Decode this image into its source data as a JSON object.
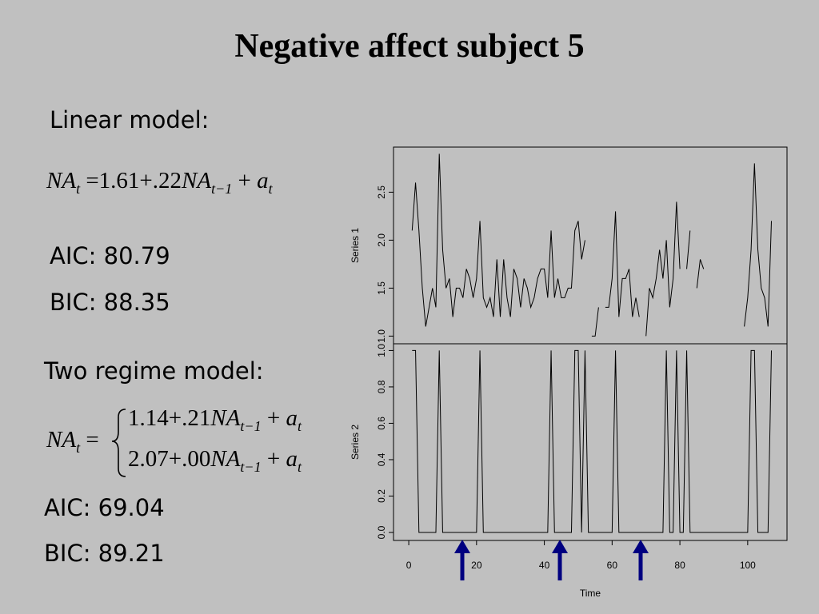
{
  "title": "Negative affect subject 5",
  "linear_model": {
    "heading": "Linear model:",
    "equation": [
      {
        "text": "NA",
        "sub": "t"
      },
      {
        "text": " =1.61+.22"
      },
      {
        "text": "NA",
        "sub": "t−1"
      },
      {
        "text": " + "
      },
      {
        "text": "a",
        "sub": "t"
      }
    ],
    "aic": "AIC: 80.79",
    "bic": "BIC: 88.35"
  },
  "two_regime_model": {
    "heading": "Two regime model:",
    "lhs": [
      {
        "text": "NA",
        "sub": "t"
      },
      {
        "text": " ="
      }
    ],
    "lines": [
      [
        {
          "text": "1.14+.21"
        },
        {
          "text": "NA",
          "sub": "t−1"
        },
        {
          "text": " + "
        },
        {
          "text": "a",
          "sub": "t"
        }
      ],
      [
        {
          "text": "2.07+.00"
        },
        {
          "text": "NA",
          "sub": "t−1"
        },
        {
          "text": " + "
        },
        {
          "text": "a",
          "sub": "t"
        }
      ]
    ],
    "aic": "AIC: 69.04",
    "bic": "BIC: 89.21"
  },
  "chart_data": [
    {
      "type": "line",
      "ylabel": "Series 1",
      "color": "#000000",
      "x": [
        1,
        2,
        3,
        4,
        5,
        6,
        7,
        8,
        9,
        10,
        11,
        12,
        13,
        14,
        15,
        16,
        17,
        18,
        19,
        20,
        21,
        22,
        23,
        24,
        25,
        26,
        27,
        28,
        29,
        30,
        31,
        32,
        33,
        34,
        35,
        36,
        37,
        38,
        39,
        40,
        41,
        42,
        43,
        44,
        45,
        46,
        47,
        48,
        49,
        50,
        51,
        52,
        53,
        54,
        55,
        56,
        57,
        58,
        59,
        60,
        61,
        62,
        63,
        64,
        65,
        66,
        67,
        68,
        69,
        70,
        71,
        72,
        73,
        74,
        75,
        76,
        77,
        78,
        79,
        80,
        81,
        82,
        83,
        84,
        85,
        86,
        87,
        88,
        89,
        90,
        91,
        92,
        93,
        94,
        95,
        96,
        97,
        98,
        99,
        100,
        101,
        102,
        103,
        104,
        105,
        106,
        107
      ],
      "values": [
        2.1,
        2.6,
        2.1,
        1.5,
        1.1,
        1.3,
        1.5,
        1.3,
        2.9,
        1.9,
        1.5,
        1.6,
        1.2,
        1.5,
        1.5,
        1.4,
        1.7,
        1.6,
        1.4,
        1.6,
        2.2,
        1.4,
        1.3,
        1.4,
        1.2,
        1.8,
        1.2,
        1.8,
        1.4,
        1.2,
        1.7,
        1.6,
        1.3,
        1.6,
        1.5,
        1.3,
        1.4,
        1.6,
        1.7,
        1.7,
        1.4,
        2.1,
        1.4,
        1.6,
        1.4,
        1.4,
        1.5,
        1.5,
        2.1,
        2.2,
        1.8,
        2.0,
        null,
        1.0,
        1.0,
        1.3,
        null,
        1.3,
        1.3,
        1.6,
        2.3,
        1.2,
        1.6,
        1.6,
        1.7,
        1.2,
        1.4,
        1.2,
        null,
        1.0,
        1.5,
        1.4,
        1.6,
        1.9,
        1.6,
        2.0,
        1.3,
        1.6,
        2.4,
        1.7,
        null,
        1.7,
        2.1,
        null,
        1.5,
        1.8,
        1.7,
        null,
        null,
        null,
        null,
        null,
        null,
        null,
        null,
        null,
        null,
        null,
        1.1,
        1.4,
        1.9,
        2.8,
        1.9,
        1.5,
        1.4,
        1.1,
        2.2
      ],
      "xlim": [
        -4.5,
        111.6
      ],
      "ylim": [
        0.92,
        2.97
      ],
      "yticks": [
        {
          "value": 1.0,
          "label": "1.0"
        },
        {
          "value": 1.5,
          "label": "1.5"
        },
        {
          "value": 2.0,
          "label": "2.0"
        },
        2.5
      ]
    },
    {
      "type": "line",
      "ylabel": "Series 2",
      "xlabel": "Time",
      "color": "#000000",
      "x": [
        1,
        2,
        3,
        4,
        5,
        6,
        7,
        8,
        9,
        10,
        11,
        12,
        13,
        14,
        15,
        16,
        17,
        18,
        19,
        20,
        21,
        22,
        23,
        24,
        25,
        26,
        27,
        28,
        29,
        30,
        31,
        32,
        33,
        34,
        35,
        36,
        37,
        38,
        39,
        40,
        41,
        42,
        43,
        44,
        45,
        46,
        47,
        48,
        49,
        50,
        51,
        52,
        53,
        54,
        55,
        56,
        57,
        58,
        59,
        60,
        61,
        62,
        63,
        64,
        65,
        66,
        67,
        68,
        69,
        70,
        71,
        72,
        73,
        74,
        75,
        76,
        77,
        78,
        79,
        80,
        81,
        82,
        83,
        84,
        85,
        86,
        87,
        88,
        89,
        90,
        91,
        92,
        93,
        94,
        95,
        96,
        97,
        98,
        99,
        100,
        101,
        102,
        103,
        104,
        105,
        106,
        107
      ],
      "values": [
        1,
        1,
        0,
        0,
        0,
        0,
        0,
        0,
        1,
        0,
        0,
        0,
        0,
        0,
        0,
        0,
        0,
        0,
        0,
        0,
        1,
        0,
        0,
        0,
        0,
        0,
        0,
        0,
        0,
        0,
        0,
        0,
        0,
        0,
        0,
        0,
        0,
        0,
        0,
        0,
        0,
        1,
        0,
        0,
        0,
        0,
        0,
        0,
        1,
        1,
        0,
        1,
        0,
        0,
        0,
        0,
        0,
        0,
        0,
        0,
        1,
        0,
        0,
        0,
        0,
        0,
        0,
        0,
        0,
        0,
        0,
        0,
        0,
        0,
        0,
        1,
        0,
        0,
        1,
        0,
        0,
        1,
        0,
        0,
        0,
        0,
        0,
        0,
        0,
        0,
        0,
        0,
        0,
        0,
        0,
        0,
        0,
        0,
        0,
        0,
        1,
        1,
        0,
        0,
        0,
        0,
        1
      ],
      "xlim": [
        -4.5,
        111.6
      ],
      "ylim": [
        -0.044,
        1.037
      ],
      "xticks": [
        0,
        20,
        40,
        60,
        80,
        100
      ],
      "yticks": [
        {
          "value": 0.0,
          "label": "0.0"
        },
        0.2,
        0.4,
        0.6,
        0.8,
        {
          "value": 1.0,
          "label": "1.0"
        }
      ]
    }
  ]
}
